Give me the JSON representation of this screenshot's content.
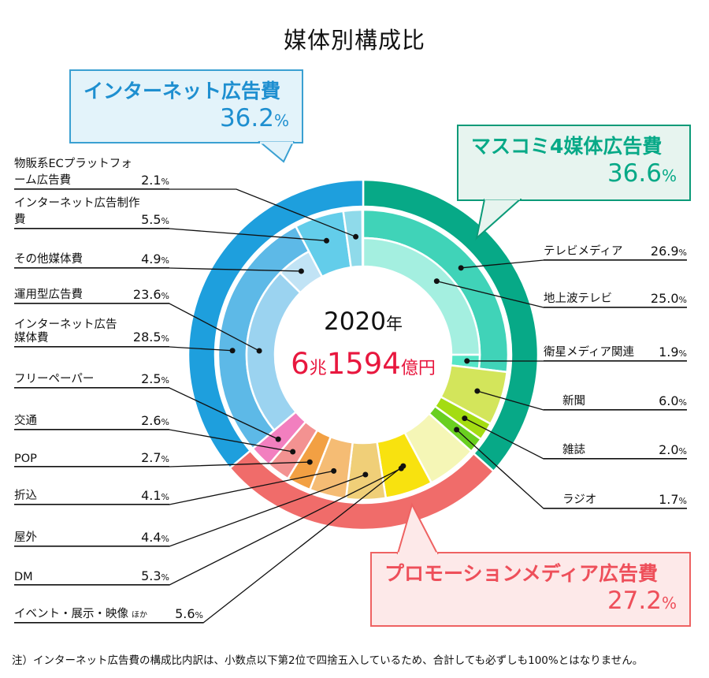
{
  "chart_data": {
    "type": "pie",
    "subtype": "nested-donut",
    "title": "媒体別構成比",
    "center": {
      "year": "2020",
      "year_unit": "年",
      "total_a": "6",
      "total_a_unit": "兆",
      "total_b": "1594",
      "total_b_unit": "億円"
    },
    "unit": "%",
    "groups": [
      {
        "name": "マスコミ4媒体広告費",
        "value": "36.6",
        "pct": 36.6,
        "color": "#07a987",
        "box_bg": "#e7f4ef",
        "items": [
          {
            "label": "テレビメディア",
            "value": "26.9",
            "pct": 26.9,
            "color": "#40d3b8",
            "children": [
              {
                "label": "地上波テレビ",
                "value": "25.0",
                "pct": 25.0,
                "color": "#a4efe0"
              },
              {
                "label": "衛星メディア関連",
                "value": "1.9",
                "pct": 1.9,
                "color": "#57e6c8"
              }
            ]
          },
          {
            "label": "新聞",
            "value": "6.0",
            "pct": 6.0,
            "color": "#d3e55b"
          },
          {
            "label": "雑誌",
            "value": "2.0",
            "pct": 2.0,
            "color": "#a4dc12"
          },
          {
            "label": "ラジオ",
            "value": "1.7",
            "pct": 1.7,
            "color": "#69cf20"
          }
        ]
      },
      {
        "name": "プロモーションメディア広告費",
        "value": "27.2",
        "pct": 27.2,
        "color": "#f06c6a",
        "box_bg": "#fde9e9",
        "items": [
          {
            "label": "イベント・展示・映像",
            "label_suffix": "ほか",
            "value": "5.6",
            "pct": 5.6,
            "color": "#f5f6b6"
          },
          {
            "label": "DM",
            "value": "5.3",
            "pct": 5.3,
            "color": "#f8e20f"
          },
          {
            "label": "屋外",
            "value": "4.4",
            "pct": 4.4,
            "color": "#f0cf78"
          },
          {
            "label": "折込",
            "value": "4.1",
            "pct": 4.1,
            "color": "#f5bc74"
          },
          {
            "label": "POP",
            "value": "2.7",
            "pct": 2.7,
            "color": "#f2a043"
          },
          {
            "label": "交通",
            "value": "2.6",
            "pct": 2.6,
            "color": "#f39291"
          },
          {
            "label": "フリーペーパー",
            "value": "2.5",
            "pct": 2.5,
            "color": "#f27fbf"
          }
        ]
      },
      {
        "name": "インターネット広告費",
        "value": "36.2",
        "pct": 36.2,
        "color": "#1e9fdd",
        "box_bg": "#e3f3fa",
        "items": [
          {
            "label": "インターネット広告\n媒体費",
            "value": "28.5",
            "pct": 28.5,
            "color": "#5db9e7",
            "children": [
              {
                "label": "運用型広告費",
                "value": "23.6",
                "pct": 23.6,
                "color": "#9bd3f0"
              },
              {
                "label": "その他媒体費",
                "value": "4.9",
                "pct": 4.9,
                "color": "#c1e3f5"
              }
            ]
          },
          {
            "label": "インターネット広告制作費",
            "value": "5.5",
            "pct": 5.5,
            "color": "#63cdea"
          },
          {
            "label": "物販系ECプラットフォーム広告費",
            "value": "2.1",
            "pct": 2.1,
            "color": "#8fdaea"
          }
        ]
      }
    ]
  },
  "footnote": "注）インターネット広告費の構成比内訳は、小数点以下第2位で四捨五入しているため、合計しても必ずしも100%とはなりません。"
}
